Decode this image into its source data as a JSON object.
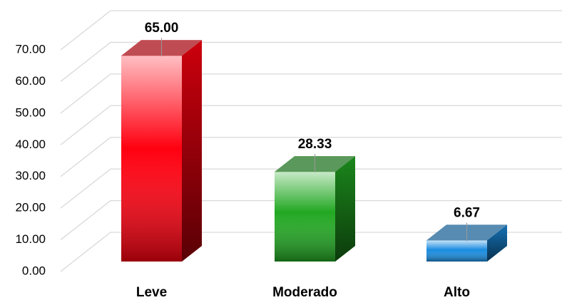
{
  "chart_data": {
    "type": "bar3d",
    "categories": [
      "Leve",
      "Moderado",
      "Alto"
    ],
    "values": [
      65,
      28.33,
      6.67
    ],
    "value_labels": [
      "65.00",
      "28.33",
      "6.67"
    ],
    "colors": [
      "#ff0010",
      "#22a822",
      "#1a8ce0"
    ],
    "ylim": [
      0,
      70
    ],
    "yticks": [
      {
        "value": 0,
        "label": "0.00"
      },
      {
        "value": 10,
        "label": "10.00"
      },
      {
        "value": 20,
        "label": "20.00"
      },
      {
        "value": 30,
        "label": "30.00"
      },
      {
        "value": 40,
        "label": "40.00"
      },
      {
        "value": 50,
        "label": "50.00"
      },
      {
        "value": 60,
        "label": "60.00"
      },
      {
        "value": 70,
        "label": "70.00"
      }
    ],
    "grid": true
  }
}
